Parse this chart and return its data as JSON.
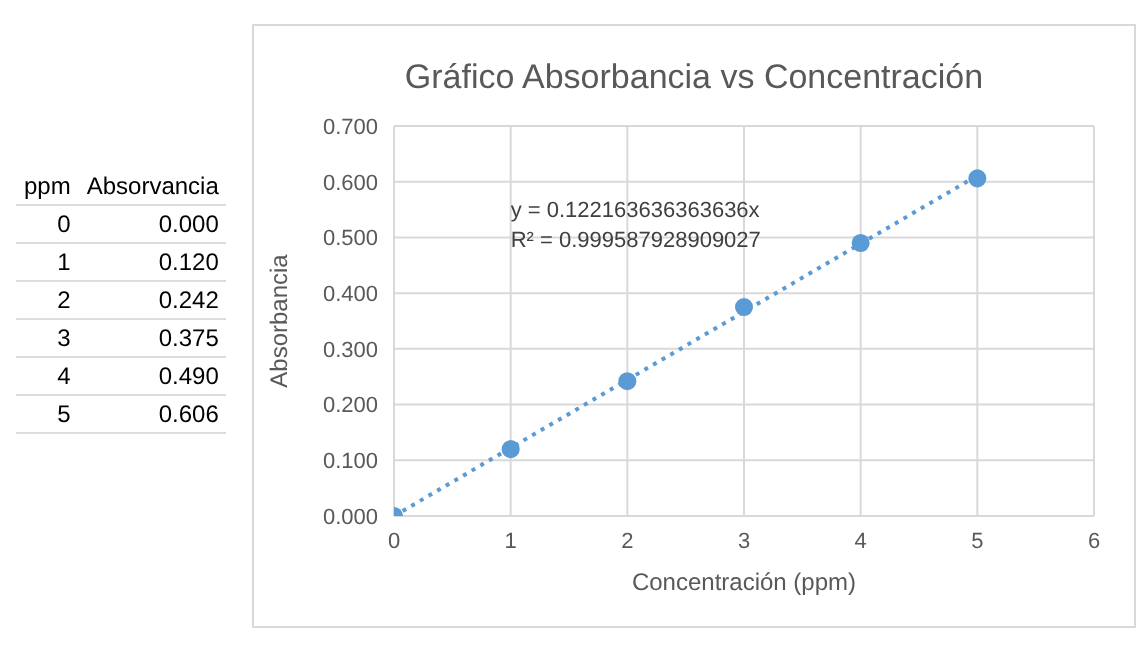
{
  "chart_data": {
    "type": "scatter",
    "title": "Gráfico Absorbancia vs Concentración",
    "xlabel": "Concentración (ppm)",
    "ylabel": "Absorbancia",
    "annotations": [
      "ppm",
      "Absorvancia",
      "0",
      "0.000",
      "1",
      "0.120",
      "2",
      "0.242",
      "3",
      "0.375",
      "4",
      "0.490",
      "5",
      "0.606",
      "y = 0.122163636363636x",
      "R² = 0.999587928909027"
    ],
    "x": [
      0,
      1,
      2,
      3,
      4,
      5
    ],
    "series": [
      {
        "color": "#5b9bd5",
        "values": [
          0.0,
          0.12,
          0.242,
          0.375,
          0.49,
          0.606
        ],
        "marker": "circle"
      },
      {
        "type": "line",
        "color": "#5b9bd5",
        "x": [
          0,
          5
        ],
        "values": [
          0,
          0.611
        ],
        "line_style": "dotted",
        "marker": "none"
      }
    ],
    "xlim": [
      0,
      6
    ],
    "xticks": [
      0,
      1,
      2,
      3,
      4,
      5,
      6
    ],
    "ylim": [
      0,
      0.7
    ],
    "yticks": [
      {
        "value": 0,
        "label": "0.000"
      },
      {
        "value": 0.1,
        "label": "0.100"
      },
      {
        "value": 0.2,
        "label": "0.200"
      },
      {
        "value": 0.3,
        "label": "0.300"
      },
      {
        "value": 0.4,
        "label": "0.400"
      },
      {
        "value": 0.5,
        "label": "0.500"
      },
      {
        "value": 0.6,
        "label": "0.600"
      },
      {
        "value": 0.7,
        "label": "0.700"
      }
    ],
    "grid": true,
    "legend": false
  }
}
